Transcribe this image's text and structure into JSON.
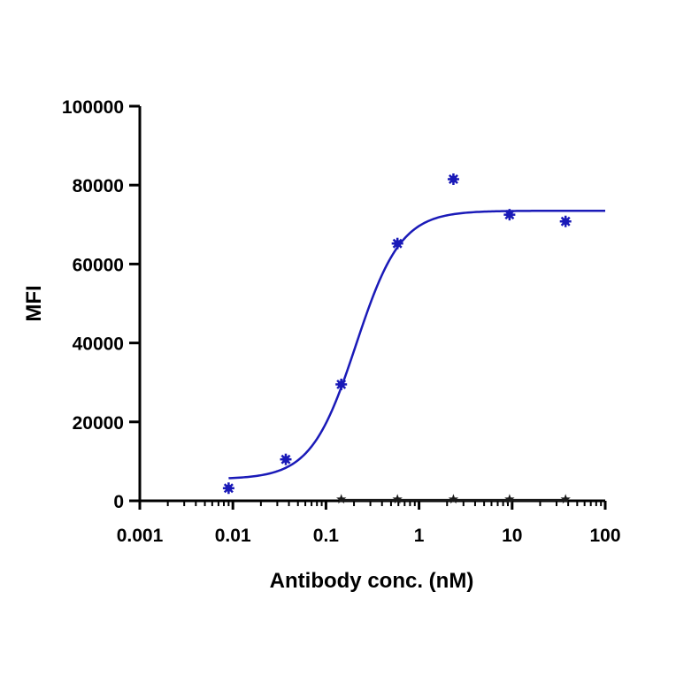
{
  "chart_data": {
    "type": "scatter",
    "title": "",
    "xlabel": "Antibody conc. (nM)",
    "ylabel": "MFI",
    "x_scale": "log",
    "xlim": [
      0.001,
      100
    ],
    "ylim": [
      0,
      100000
    ],
    "x_tick_labels": [
      "0.001",
      "0.01",
      "0.1",
      "1",
      "10",
      "100"
    ],
    "x_tick_values": [
      0.001,
      0.01,
      0.1,
      1,
      10,
      100
    ],
    "y_tick_labels": [
      "0",
      "20000",
      "40000",
      "60000",
      "80000",
      "100000"
    ],
    "y_tick_values": [
      0,
      20000,
      40000,
      60000,
      80000,
      100000
    ],
    "grid": false,
    "legend": "none",
    "series": [
      {
        "marker": "asterisk",
        "color": "#1a1ab8",
        "x": [
          0.009,
          0.037,
          0.146,
          0.586,
          2.34,
          9.38,
          37.5
        ],
        "y": [
          3200,
          10500,
          29500,
          65200,
          81500,
          72500,
          70800
        ],
        "fit": {
          "model": "4PL",
          "bottom": 5500,
          "top": 73500,
          "ec50": 0.21,
          "hill": 1.8,
          "x_range": [
            0.009,
            100
          ],
          "color": "#1a1ab8"
        }
      },
      {
        "marker": "star",
        "color": "#1a1a1a",
        "x": [
          0.146,
          0.586,
          2.34,
          9.38,
          37.5
        ],
        "y": [
          400,
          400,
          400,
          400,
          400
        ],
        "fit": {
          "model": "flat",
          "value": 200,
          "x_range": [
            0.146,
            40
          ],
          "color": "#1a1a1a"
        }
      }
    ]
  }
}
